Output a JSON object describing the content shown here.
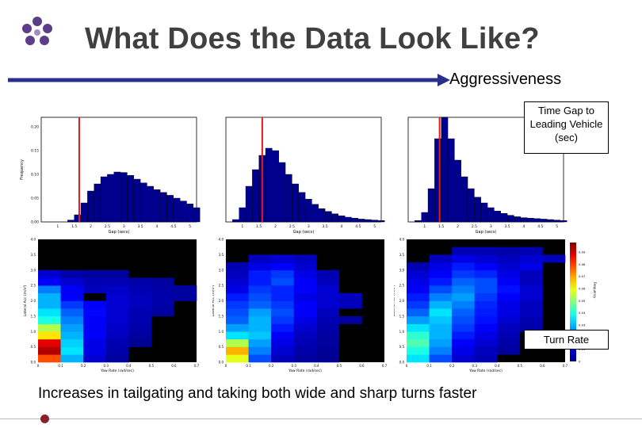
{
  "slide": {
    "title": "What Does the Data Look Like?",
    "arrow_label": "Aggressiveness",
    "callout_time_gap": [
      "Time Gap to",
      "Leading Vehicle",
      "(sec)"
    ],
    "callout_turn_rate": "Turn Rate",
    "caption": "Increases in tailgating and taking both wide and sharp turns faster"
  },
  "colors": {
    "title": "#404040",
    "arrow": "#2b2f8c",
    "bar": "#00008f",
    "marker": "#e11b1b",
    "logo_purple": "#5b3d88",
    "footer_dot": "#8b1f2b"
  },
  "chart_data": [
    {
      "type": "bar",
      "role": "histogram",
      "xlabel": "Gap (secs)",
      "ylabel": "Frequency",
      "xticks": [
        "1",
        "1.5",
        "2",
        "2.5",
        "3",
        "3.5",
        "4",
        "4.5",
        "5"
      ],
      "yticks": [
        "0.00",
        "0.05",
        "0.10",
        "0.15",
        "0.20"
      ],
      "xlim": [
        0.5,
        5.2
      ],
      "ylim": [
        0,
        0.22
      ],
      "x_start": 0.5,
      "bin_width": 0.2,
      "marker_x": 1.65,
      "values": [
        0,
        0,
        0,
        0,
        0.004,
        0.015,
        0.04,
        0.065,
        0.08,
        0.095,
        0.1,
        0.105,
        0.104,
        0.098,
        0.09,
        0.082,
        0.075,
        0.068,
        0.062,
        0.056,
        0.05,
        0.044,
        0.038,
        0.03
      ]
    },
    {
      "type": "bar",
      "role": "histogram",
      "xlabel": "Gap (secs)",
      "ylabel": "",
      "xticks": [
        "1",
        "1.5",
        "2",
        "2.5",
        "3",
        "3.5",
        "4",
        "4.5",
        "5"
      ],
      "yticks": [],
      "xlim": [
        0.5,
        5.2
      ],
      "ylim": [
        0,
        0.22
      ],
      "x_start": 0.5,
      "bin_width": 0.2,
      "marker_x": 1.6,
      "values": [
        0,
        0.005,
        0.03,
        0.075,
        0.11,
        0.14,
        0.155,
        0.15,
        0.125,
        0.1,
        0.08,
        0.062,
        0.048,
        0.037,
        0.028,
        0.022,
        0.017,
        0.013,
        0.01,
        0.008,
        0.006,
        0.005,
        0.004,
        0.003
      ]
    },
    {
      "type": "bar",
      "role": "histogram",
      "xlabel": "Gap (secs)",
      "ylabel": "",
      "xticks": [
        "1",
        "1.5",
        "2",
        "2.5",
        "3",
        "3.5",
        "4",
        "4.5",
        "5"
      ],
      "yticks": [],
      "xlim": [
        0.5,
        5.2
      ],
      "ylim": [
        0,
        0.22
      ],
      "x_start": 0.5,
      "bin_width": 0.2,
      "marker_x": 1.45,
      "values": [
        0,
        0.003,
        0.02,
        0.07,
        0.175,
        0.22,
        0.175,
        0.13,
        0.095,
        0.07,
        0.052,
        0.04,
        0.03,
        0.023,
        0.018,
        0.014,
        0.011,
        0.009,
        0.008,
        0.007,
        0.006,
        0.005,
        0.004,
        0.003
      ]
    },
    {
      "type": "heatmap",
      "xlabel": "Yaw Rate (rad/sec)",
      "ylabel": "Lateral Acc (m/s²)",
      "xticks": [
        "0",
        "0.1",
        "0.2",
        "0.3",
        "0.4",
        "0.5",
        "0.6",
        "0.7"
      ],
      "yticks": [
        "0.0",
        "0.5",
        "1.0",
        "1.5",
        "2.0",
        "2.5",
        "3.0",
        "3.5",
        "4.0"
      ],
      "xlim": [
        0,
        0.7
      ],
      "ylim": [
        0,
        4.0
      ],
      "cols": 7,
      "rows": 16,
      "grid": [
        [
          0.8,
          0.3,
          0.08,
          0.03,
          0,
          0,
          0
        ],
        [
          0.95,
          0.35,
          0.1,
          0.04,
          0,
          0,
          0
        ],
        [
          0.9,
          0.33,
          0.1,
          0.05,
          0.02,
          0,
          0
        ],
        [
          0.65,
          0.3,
          0.12,
          0.06,
          0.03,
          0,
          0
        ],
        [
          0.55,
          0.28,
          0.12,
          0.07,
          0.04,
          0,
          0
        ],
        [
          0.4,
          0.25,
          0.12,
          0.08,
          0.05,
          0,
          0
        ],
        [
          0.35,
          0.22,
          0.13,
          0.08,
          0.05,
          0.03,
          0
        ],
        [
          0.3,
          0.18,
          0.12,
          0.08,
          0.06,
          0.04,
          0
        ],
        [
          0.3,
          0.12,
          0,
          0.08,
          0.06,
          0.04,
          0.03
        ],
        [
          0.25,
          0.12,
          0.06,
          0.07,
          0.05,
          0.04,
          0.03
        ],
        [
          0.12,
          0.08,
          0.05,
          0.05,
          0.04,
          0.03,
          0
        ],
        [
          0.08,
          0.04,
          0.03,
          0.03,
          0,
          0,
          0
        ],
        [
          0,
          0,
          0,
          0,
          0,
          0,
          0
        ],
        [
          0,
          0,
          0,
          0,
          0,
          0,
          0
        ],
        [
          0,
          0,
          0,
          0,
          0,
          0,
          0
        ],
        [
          0,
          0,
          0,
          0,
          0,
          0,
          0
        ]
      ]
    },
    {
      "type": "heatmap",
      "xlabel": "Yaw Rate (rad/sec)",
      "ylabel": "Lateral Acc (m/s²)",
      "xticks": [
        "0",
        "0.1",
        "0.2",
        "0.3",
        "0.4",
        "0.5",
        "0.6",
        "0.7"
      ],
      "yticks": [
        "0.0",
        "0.5",
        "1.0",
        "1.5",
        "2.0",
        "2.5",
        "3.0",
        "3.5",
        "4.0"
      ],
      "xlim": [
        0,
        0.7
      ],
      "ylim": [
        0,
        4.0
      ],
      "cols": 7,
      "rows": 16,
      "grid": [
        [
          0.6,
          0.2,
          0.06,
          0.03,
          0.02,
          0,
          0
        ],
        [
          0.7,
          0.25,
          0.08,
          0.04,
          0.02,
          0,
          0
        ],
        [
          0.55,
          0.28,
          0.1,
          0.05,
          0.03,
          0,
          0
        ],
        [
          0.35,
          0.32,
          0.12,
          0.06,
          0.03,
          0,
          0
        ],
        [
          0.28,
          0.3,
          0.15,
          0.08,
          0.04,
          0,
          0
        ],
        [
          0.22,
          0.3,
          0.18,
          0.1,
          0.05,
          0.03,
          0
        ],
        [
          0.2,
          0.28,
          0.2,
          0.12,
          0.06,
          0,
          0
        ],
        [
          0.18,
          0.22,
          0.18,
          0.12,
          0.08,
          0.06,
          0
        ],
        [
          0.15,
          0.2,
          0.16,
          0.1,
          0.08,
          0.06,
          0
        ],
        [
          0.1,
          0.18,
          0.16,
          0.12,
          0.08,
          0,
          0
        ],
        [
          0.08,
          0.15,
          0.2,
          0.12,
          0.06,
          0,
          0
        ],
        [
          0.06,
          0.15,
          0.18,
          0.1,
          0.05,
          0,
          0
        ],
        [
          0.05,
          0.1,
          0.12,
          0.08,
          0,
          0,
          0
        ],
        [
          0,
          0.06,
          0.08,
          0.06,
          0,
          0,
          0
        ],
        [
          0,
          0,
          0,
          0,
          0,
          0,
          0
        ],
        [
          0,
          0,
          0,
          0,
          0,
          0,
          0
        ]
      ]
    },
    {
      "type": "heatmap",
      "xlabel": "Yaw Rate (rad/sec)",
      "ylabel": "Lateral Acc (m/s²)",
      "xticks": [
        "0",
        "0.1",
        "0.2",
        "0.3",
        "0.4",
        "0.5",
        "0.6",
        "0.7"
      ],
      "yticks": [
        "0.0",
        "0.5",
        "1.0",
        "1.5",
        "2.0",
        "2.5",
        "3.0",
        "3.5",
        "4.0"
      ],
      "xlim": [
        0,
        0.7
      ],
      "ylim": [
        0,
        4.0
      ],
      "cols": 7,
      "rows": 16,
      "grid": [
        [
          0.35,
          0.2,
          0.08,
          0.05,
          0,
          0,
          0
        ],
        [
          0.4,
          0.25,
          0.1,
          0.06,
          0.03,
          0,
          0
        ],
        [
          0.45,
          0.28,
          0.12,
          0.08,
          0.04,
          0,
          0
        ],
        [
          0.42,
          0.3,
          0.15,
          0.1,
          0.05,
          0,
          0
        ],
        [
          0.35,
          0.3,
          0.18,
          0.12,
          0.06,
          0.04,
          0
        ],
        [
          0.28,
          0.32,
          0.2,
          0.14,
          0.08,
          0.05,
          0
        ],
        [
          0.22,
          0.35,
          0.22,
          0.15,
          0.1,
          0.06,
          0
        ],
        [
          0.18,
          0.3,
          0.25,
          0.16,
          0.1,
          0.06,
          0
        ],
        [
          0.15,
          0.25,
          0.28,
          0.18,
          0.12,
          0.08,
          0
        ],
        [
          0.12,
          0.2,
          0.25,
          0.2,
          0.14,
          0.08,
          0
        ],
        [
          0.1,
          0.15,
          0.22,
          0.2,
          0.12,
          0.06,
          0
        ],
        [
          0.08,
          0.12,
          0.18,
          0.16,
          0.1,
          0.06,
          0
        ],
        [
          0.05,
          0.1,
          0.15,
          0.12,
          0.08,
          0.1,
          0
        ],
        [
          0,
          0.06,
          0.1,
          0.08,
          0.06,
          0.08,
          0.06
        ],
        [
          0,
          0,
          0.05,
          0.05,
          0.04,
          0.05,
          0
        ],
        [
          0,
          0,
          0,
          0,
          0,
          0,
          0
        ]
      ]
    }
  ],
  "colorbar": {
    "label": "Frequency",
    "ticks": [
      "0",
      "0.01",
      "0.02",
      "0.03",
      "0.04",
      "0.05",
      "0.06",
      "0.07",
      "0.08",
      "0.09"
    ]
  }
}
